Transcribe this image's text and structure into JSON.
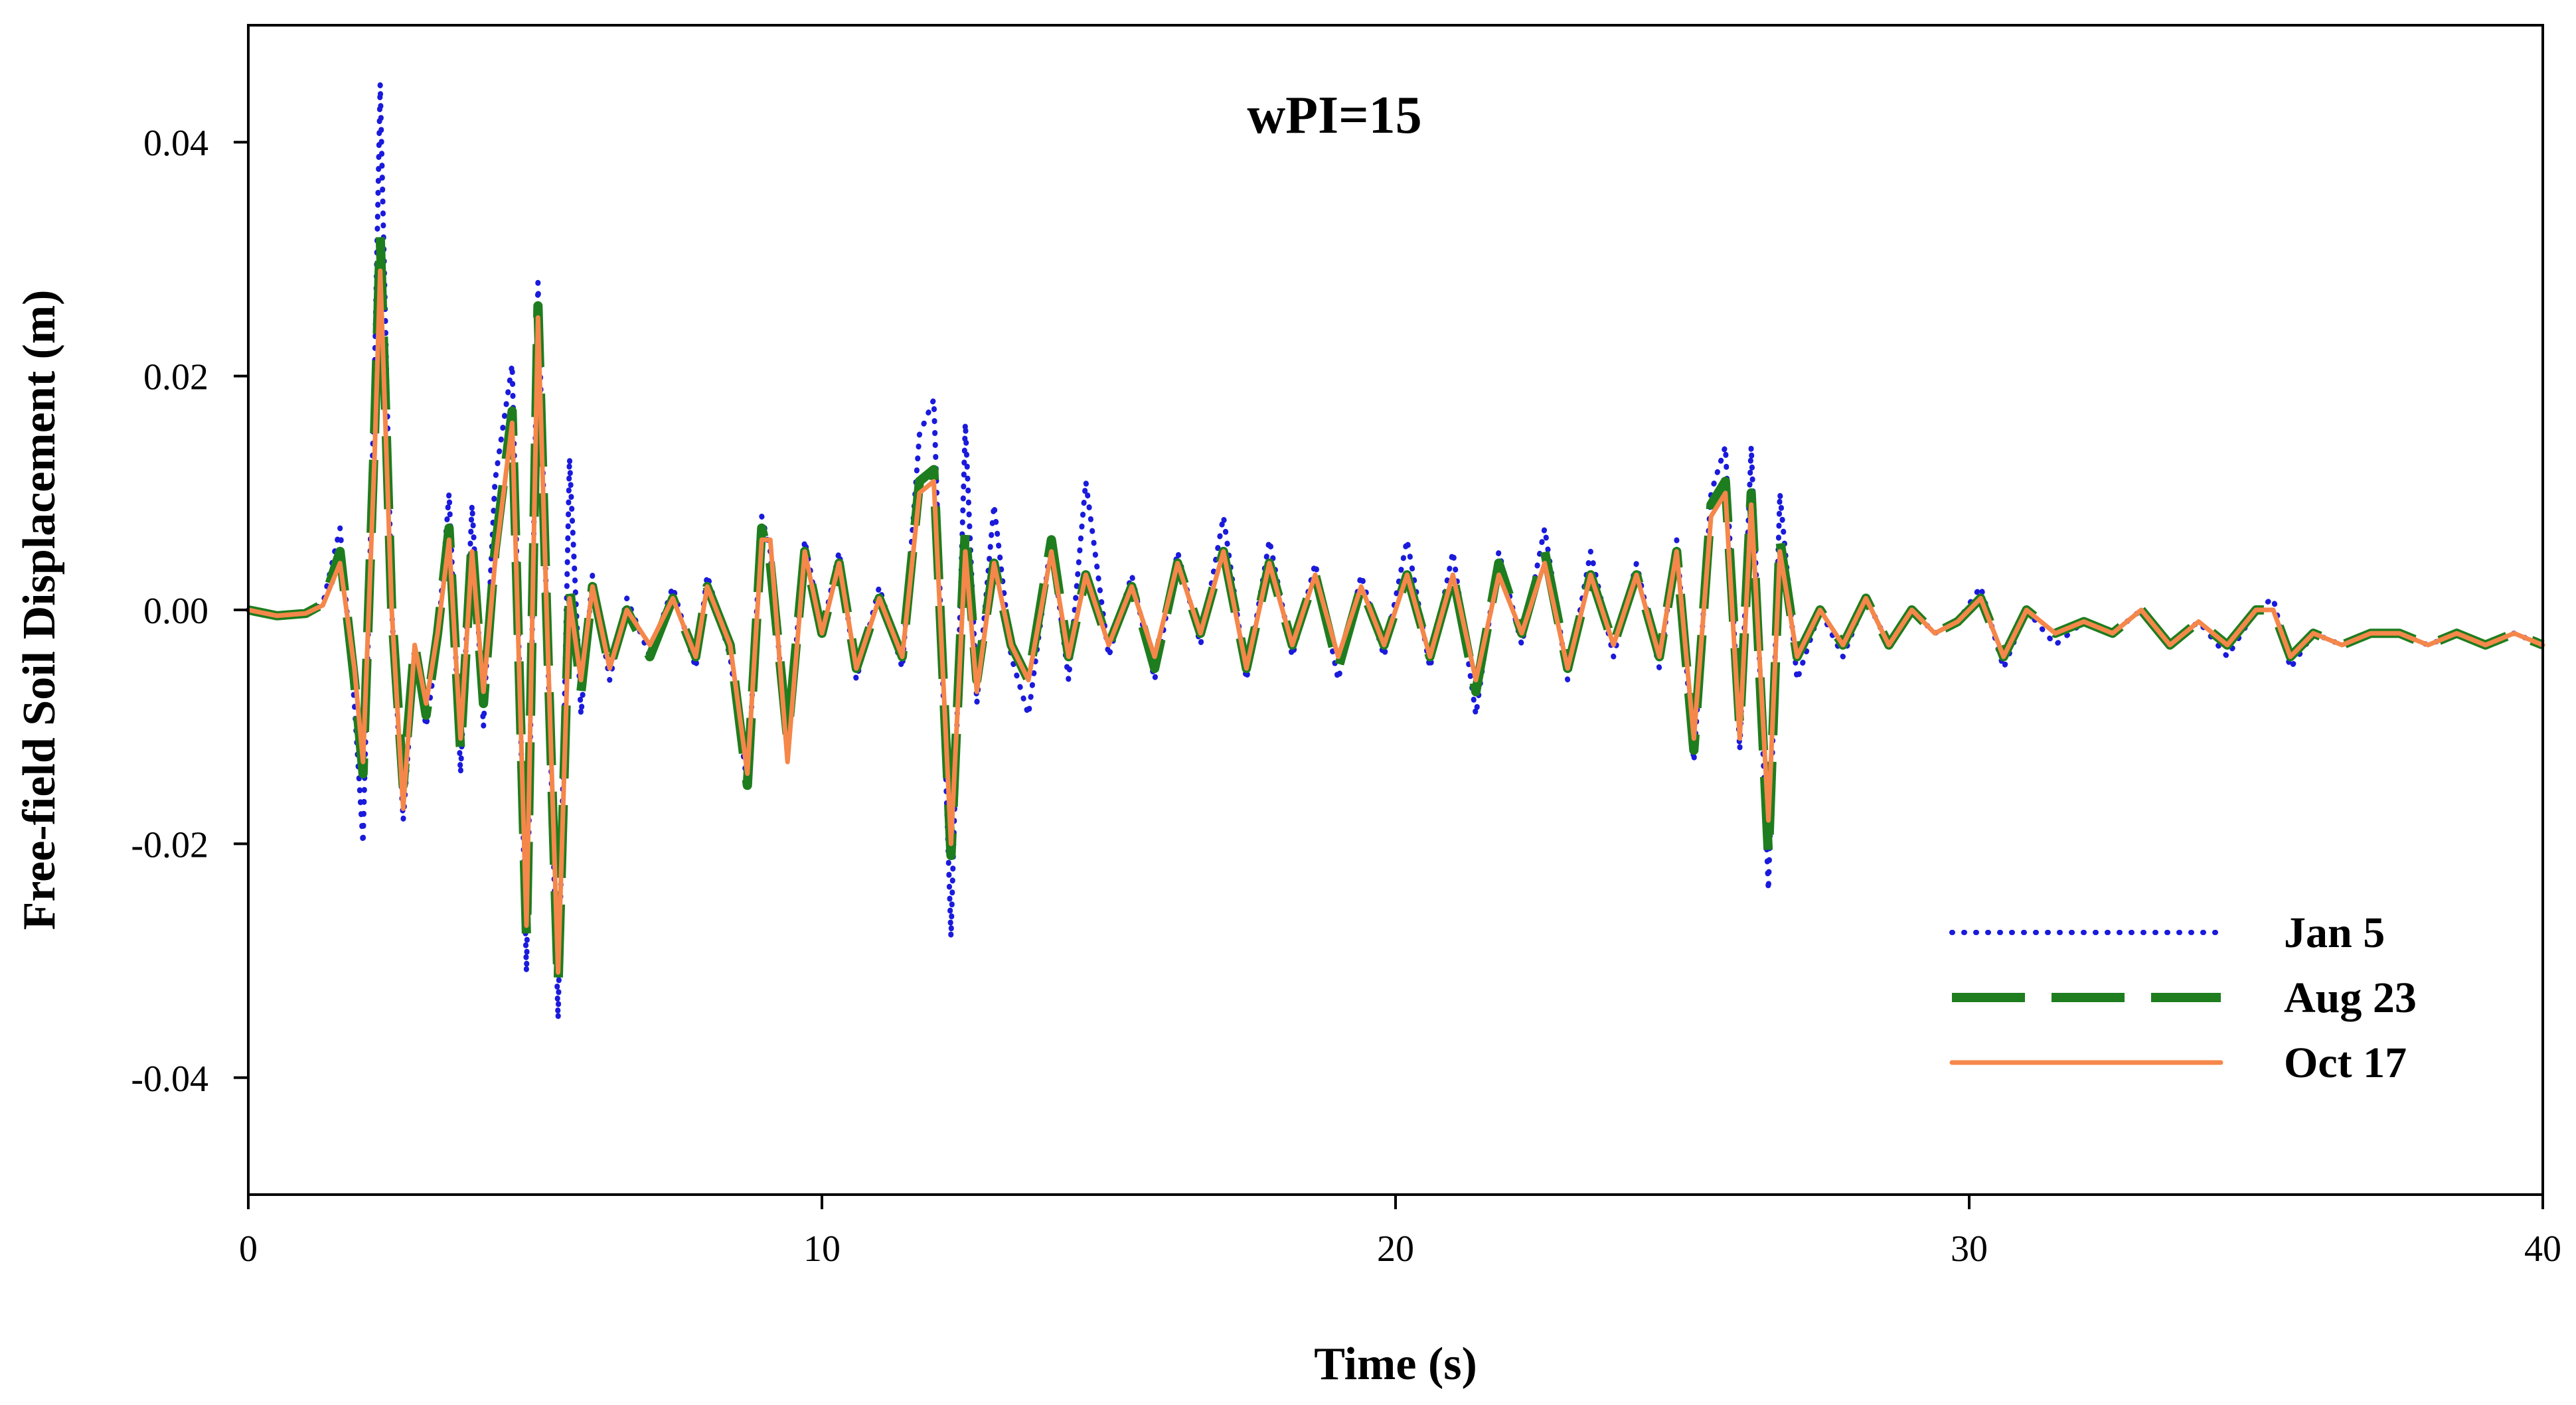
{
  "chart_data": {
    "type": "line",
    "title": "wPI=15",
    "xlabel": "Time (s)",
    "ylabel": "Free-field Soil Displacement (m)",
    "xlim": [
      0,
      40
    ],
    "ylim": [
      -0.05,
      0.05
    ],
    "xticks": [
      0,
      10,
      20,
      30,
      40
    ],
    "xtick_labels": [
      "0",
      "10",
      "20",
      "30",
      "40"
    ],
    "yticks": [
      -0.04,
      -0.02,
      0.0,
      0.02,
      0.04
    ],
    "ytick_labels": [
      "-0.04",
      "-0.02",
      "0.00",
      "0.02",
      "0.04"
    ],
    "grid": false,
    "legend_position": "bottom-right",
    "series": [
      {
        "name": "Jan 5",
        "color": "#1a1adc",
        "style": "dotted",
        "x": [
          0,
          0.5,
          1.0,
          1.3,
          1.6,
          1.85,
          2.0,
          2.2,
          2.3,
          2.5,
          2.7,
          2.9,
          3.1,
          3.3,
          3.5,
          3.7,
          3.9,
          4.1,
          4.3,
          4.6,
          4.85,
          5.05,
          5.2,
          5.4,
          5.6,
          5.8,
          6.0,
          6.3,
          6.6,
          7.0,
          7.4,
          7.8,
          8.0,
          8.4,
          8.7,
          8.95,
          9.1,
          9.4,
          9.7,
          10.0,
          10.3,
          10.6,
          11.0,
          11.4,
          11.7,
          11.95,
          12.25,
          12.5,
          12.7,
          13.0,
          13.3,
          13.6,
          14.0,
          14.3,
          14.6,
          15.0,
          15.4,
          15.8,
          16.2,
          16.6,
          17.0,
          17.4,
          17.8,
          18.2,
          18.6,
          19.0,
          19.4,
          19.8,
          20.2,
          20.6,
          21.0,
          21.4,
          21.8,
          22.2,
          22.6,
          23.0,
          23.4,
          23.8,
          24.2,
          24.6,
          24.9,
          25.2,
          25.5,
          25.75,
          26.0,
          26.2,
          26.5,
          26.7,
          27.0,
          27.4,
          27.8,
          28.2,
          28.6,
          29.0,
          29.4,
          29.8,
          30.2,
          30.6,
          31.0,
          31.5,
          32.0,
          32.5,
          33.0,
          33.5,
          34.0,
          34.5,
          35.0,
          35.3,
          35.6,
          36.0,
          36.5,
          37.0,
          37.5,
          38.0,
          38.5,
          39.0,
          39.5,
          40.0
        ],
        "values": [
          0.0,
          -0.0005,
          -0.0003,
          0.0005,
          0.007,
          -0.008,
          -0.02,
          0.02,
          0.045,
          0.0,
          -0.018,
          -0.004,
          -0.01,
          -0.003,
          0.01,
          -0.014,
          0.009,
          -0.01,
          0.011,
          0.021,
          -0.031,
          0.028,
          0.0,
          -0.035,
          0.013,
          -0.009,
          0.003,
          -0.006,
          0.001,
          -0.004,
          0.002,
          -0.005,
          0.003,
          -0.004,
          -0.015,
          0.008,
          0.005,
          -0.012,
          0.006,
          -0.002,
          0.005,
          -0.006,
          0.002,
          -0.005,
          0.015,
          0.018,
          -0.028,
          0.016,
          -0.008,
          0.009,
          -0.004,
          -0.009,
          0.006,
          -0.006,
          0.011,
          -0.004,
          0.003,
          -0.006,
          0.005,
          -0.003,
          0.008,
          -0.006,
          0.006,
          -0.004,
          0.004,
          -0.006,
          0.003,
          -0.004,
          0.006,
          -0.005,
          0.005,
          -0.009,
          0.005,
          -0.003,
          0.007,
          -0.006,
          0.005,
          -0.004,
          0.004,
          -0.005,
          0.006,
          -0.013,
          0.01,
          0.014,
          -0.012,
          0.014,
          -0.024,
          0.01,
          -0.006,
          0.0,
          -0.004,
          0.001,
          -0.003,
          0.0,
          -0.002,
          -0.001,
          0.002,
          -0.005,
          0.0,
          -0.003,
          -0.001,
          -0.002,
          0.0,
          -0.003,
          -0.001,
          -0.004,
          0.0,
          0.001,
          -0.005,
          -0.002,
          -0.003,
          -0.002,
          -0.002,
          -0.003,
          -0.002,
          -0.003,
          -0.002,
          -0.003
        ]
      },
      {
        "name": "Aug 23",
        "color": "#1e7d1e",
        "style": "dashed",
        "x": [
          0,
          0.5,
          1.0,
          1.3,
          1.6,
          1.85,
          2.0,
          2.2,
          2.3,
          2.5,
          2.7,
          2.9,
          3.1,
          3.3,
          3.5,
          3.7,
          3.9,
          4.1,
          4.3,
          4.6,
          4.85,
          5.05,
          5.2,
          5.4,
          5.6,
          5.8,
          6.0,
          6.3,
          6.6,
          7.0,
          7.4,
          7.8,
          8.0,
          8.4,
          8.7,
          8.95,
          9.1,
          9.4,
          9.7,
          10.0,
          10.3,
          10.6,
          11.0,
          11.4,
          11.7,
          11.95,
          12.25,
          12.5,
          12.7,
          13.0,
          13.3,
          13.6,
          14.0,
          14.3,
          14.6,
          15.0,
          15.4,
          15.8,
          16.2,
          16.6,
          17.0,
          17.4,
          17.8,
          18.2,
          18.6,
          19.0,
          19.4,
          19.8,
          20.2,
          20.6,
          21.0,
          21.4,
          21.8,
          22.2,
          22.6,
          23.0,
          23.4,
          23.8,
          24.2,
          24.6,
          24.9,
          25.2,
          25.5,
          25.75,
          26.0,
          26.2,
          26.5,
          26.7,
          27.0,
          27.4,
          27.8,
          28.2,
          28.6,
          29.0,
          29.4,
          29.8,
          30.2,
          30.6,
          31.0,
          31.5,
          32.0,
          32.5,
          33.0,
          33.5,
          34.0,
          34.5,
          35.0,
          35.3,
          35.6,
          36.0,
          36.5,
          37.0,
          37.5,
          38.0,
          38.5,
          39.0,
          39.5,
          40.0
        ],
        "values": [
          0.0,
          -0.0005,
          -0.0003,
          0.0005,
          0.005,
          -0.006,
          -0.014,
          0.015,
          0.032,
          0.0,
          -0.015,
          -0.003,
          -0.009,
          -0.002,
          0.007,
          -0.012,
          0.006,
          -0.008,
          0.005,
          0.017,
          -0.028,
          0.026,
          0.0,
          -0.032,
          0.002,
          -0.007,
          0.002,
          -0.005,
          0.0,
          -0.004,
          0.001,
          -0.004,
          0.002,
          -0.003,
          -0.015,
          0.007,
          0.004,
          -0.011,
          0.005,
          -0.002,
          0.004,
          -0.005,
          0.001,
          -0.004,
          0.011,
          0.012,
          -0.021,
          0.007,
          -0.006,
          0.004,
          -0.003,
          -0.006,
          0.006,
          -0.004,
          0.003,
          -0.003,
          0.002,
          -0.005,
          0.004,
          -0.002,
          0.005,
          -0.005,
          0.004,
          -0.003,
          0.003,
          -0.005,
          0.002,
          -0.003,
          0.003,
          -0.004,
          0.003,
          -0.007,
          0.004,
          -0.002,
          0.005,
          -0.005,
          0.003,
          -0.003,
          0.003,
          -0.004,
          0.005,
          -0.012,
          0.009,
          0.011,
          -0.01,
          0.01,
          -0.021,
          0.006,
          -0.004,
          0.0,
          -0.003,
          0.001,
          -0.003,
          0.0,
          -0.002,
          -0.001,
          0.001,
          -0.004,
          0.0,
          -0.002,
          -0.001,
          -0.002,
          0.0,
          -0.003,
          -0.001,
          -0.003,
          0.0,
          0.0,
          -0.004,
          -0.002,
          -0.003,
          -0.002,
          -0.002,
          -0.003,
          -0.002,
          -0.003,
          -0.002,
          -0.003
        ]
      },
      {
        "name": "Oct 17",
        "color": "#f5874a",
        "style": "solid",
        "x": [
          0,
          0.5,
          1.0,
          1.3,
          1.6,
          1.85,
          2.0,
          2.2,
          2.3,
          2.5,
          2.7,
          2.9,
          3.1,
          3.3,
          3.5,
          3.7,
          3.9,
          4.1,
          4.3,
          4.6,
          4.85,
          5.05,
          5.2,
          5.4,
          5.6,
          5.8,
          6.0,
          6.3,
          6.6,
          7.0,
          7.4,
          7.8,
          8.0,
          8.4,
          8.7,
          8.95,
          9.1,
          9.4,
          9.7,
          10.0,
          10.3,
          10.6,
          11.0,
          11.4,
          11.7,
          11.95,
          12.25,
          12.5,
          12.7,
          13.0,
          13.3,
          13.6,
          14.0,
          14.3,
          14.6,
          15.0,
          15.4,
          15.8,
          16.2,
          16.6,
          17.0,
          17.4,
          17.8,
          18.2,
          18.6,
          19.0,
          19.4,
          19.8,
          20.2,
          20.6,
          21.0,
          21.4,
          21.8,
          22.2,
          22.6,
          23.0,
          23.4,
          23.8,
          24.2,
          24.6,
          24.9,
          25.2,
          25.5,
          25.75,
          26.0,
          26.2,
          26.5,
          26.7,
          27.0,
          27.4,
          27.8,
          28.2,
          28.6,
          29.0,
          29.4,
          29.8,
          30.2,
          30.6,
          31.0,
          31.5,
          32.0,
          32.5,
          33.0,
          33.5,
          34.0,
          34.5,
          35.0,
          35.3,
          35.6,
          36.0,
          36.5,
          37.0,
          37.5,
          38.0,
          38.5,
          39.0,
          39.5,
          40.0
        ],
        "values": [
          0.0,
          -0.0005,
          -0.0003,
          0.0004,
          0.004,
          -0.005,
          -0.013,
          0.013,
          0.029,
          0.0,
          -0.017,
          -0.003,
          -0.008,
          -0.002,
          0.006,
          -0.011,
          0.005,
          -0.007,
          0.004,
          0.016,
          -0.027,
          0.025,
          0.0,
          -0.031,
          0.001,
          -0.006,
          0.002,
          -0.005,
          0.0,
          -0.003,
          0.001,
          -0.004,
          0.002,
          -0.003,
          -0.014,
          0.006,
          0.006,
          -0.013,
          0.005,
          -0.002,
          0.004,
          -0.005,
          0.001,
          -0.004,
          0.01,
          0.011,
          -0.02,
          0.005,
          -0.007,
          0.004,
          -0.003,
          -0.006,
          0.005,
          -0.004,
          0.003,
          -0.003,
          0.002,
          -0.004,
          0.004,
          -0.002,
          0.005,
          -0.005,
          0.004,
          -0.003,
          0.003,
          -0.004,
          0.002,
          -0.003,
          0.003,
          -0.004,
          0.003,
          -0.006,
          0.003,
          -0.002,
          0.004,
          -0.005,
          0.003,
          -0.003,
          0.003,
          -0.004,
          0.005,
          -0.011,
          0.008,
          0.01,
          -0.011,
          0.009,
          -0.018,
          0.005,
          -0.004,
          0.0,
          -0.003,
          0.001,
          -0.003,
          0.0,
          -0.002,
          -0.001,
          0.001,
          -0.004,
          0.0,
          -0.002,
          -0.001,
          -0.002,
          0.0,
          -0.003,
          -0.001,
          -0.003,
          0.0,
          0.0,
          -0.004,
          -0.002,
          -0.003,
          -0.002,
          -0.002,
          -0.003,
          -0.002,
          -0.003,
          -0.002,
          -0.003
        ]
      }
    ]
  }
}
